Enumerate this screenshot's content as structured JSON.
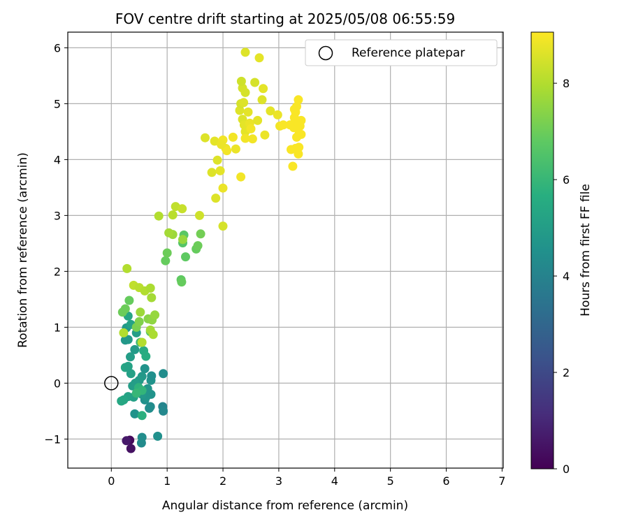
{
  "chart_data": {
    "type": "scatter",
    "title": "FOV centre drift starting at 2025/05/08 06:55:59",
    "xlabel": "Angular distance from reference (arcmin)",
    "ylabel": "Rotation from reference (arcmin)",
    "xlim": [
      -0.78,
      7.02
    ],
    "ylim": [
      -1.52,
      6.28
    ],
    "xticks": [
      "0",
      "1",
      "2",
      "3",
      "4",
      "5",
      "6",
      "7"
    ],
    "yticks": [
      "−1",
      "0",
      "1",
      "2",
      "3",
      "4",
      "5",
      "6"
    ],
    "grid": true,
    "legend": {
      "location": "top-right",
      "entries": [
        "Reference platepar"
      ]
    },
    "colorbar": {
      "label": "Hours from first FF file",
      "range": [
        0,
        9.06
      ],
      "ticks": [
        "0",
        "2",
        "4",
        "6",
        "8"
      ],
      "colormap": "viridis"
    },
    "reference_point": {
      "name": "Reference platepar",
      "x": 0,
      "y": 0
    },
    "points": [
      [
        0.33,
        -1.02,
        0.2
      ],
      [
        0.35,
        -1.17,
        0.4
      ],
      [
        0.27,
        -1.03,
        0.6
      ],
      [
        0.54,
        -1.07,
        4.3
      ],
      [
        0.55,
        -0.97,
        4.4
      ],
      [
        0.83,
        -0.95,
        4.5
      ],
      [
        0.42,
        -0.55,
        4.6
      ],
      [
        0.92,
        -0.42,
        4.1
      ],
      [
        0.93,
        -0.5,
        4.2
      ],
      [
        0.7,
        -0.42,
        4.3
      ],
      [
        0.68,
        -0.45,
        4.4
      ],
      [
        0.6,
        -0.3,
        4.5
      ],
      [
        0.71,
        -0.2,
        4.6
      ],
      [
        0.62,
        -0.25,
        4.7
      ],
      [
        0.55,
        -0.2,
        4.8
      ],
      [
        0.65,
        -0.1,
        4.7
      ],
      [
        0.71,
        0.05,
        4.6
      ],
      [
        0.72,
        0.13,
        4.5
      ],
      [
        0.93,
        0.17,
        4.4
      ],
      [
        0.6,
        0.26,
        4.6
      ],
      [
        0.55,
        0.12,
        4.8
      ],
      [
        0.5,
        0.05,
        4.9
      ],
      [
        0.43,
        0.0,
        5.0
      ],
      [
        0.38,
        -0.05,
        5.0
      ],
      [
        0.4,
        -0.25,
        5.1
      ],
      [
        0.3,
        -0.24,
        5.2
      ],
      [
        0.22,
        -0.3,
        5.3
      ],
      [
        0.18,
        -0.32,
        5.4
      ],
      [
        0.25,
        0.28,
        5.3
      ],
      [
        0.3,
        0.3,
        5.2
      ],
      [
        0.35,
        0.17,
        5.1
      ],
      [
        0.34,
        0.47,
        5.0
      ],
      [
        0.42,
        0.6,
        4.9
      ],
      [
        0.45,
        0.9,
        5.0
      ],
      [
        0.3,
        0.78,
        4.9
      ],
      [
        0.25,
        0.77,
        4.8
      ],
      [
        0.27,
        0.99,
        4.9
      ],
      [
        0.35,
        1.05,
        5.2
      ],
      [
        0.3,
        1.2,
        5.3
      ],
      [
        0.58,
        0.58,
        5.5
      ],
      [
        0.62,
        0.48,
        5.6
      ],
      [
        0.55,
        -0.58,
        5.7
      ],
      [
        0.49,
        -0.08,
        5.8
      ],
      [
        0.55,
        -0.13,
        5.9
      ],
      [
        0.45,
        -0.18,
        6.0
      ],
      [
        0.52,
        0.73,
        6.1
      ],
      [
        0.7,
        0.92,
        6.5
      ],
      [
        0.32,
        1.48,
        6.9
      ],
      [
        0.25,
        1.33,
        7.0
      ],
      [
        0.2,
        1.27,
        7.0
      ],
      [
        0.45,
        1.0,
        7.2
      ],
      [
        0.5,
        1.1,
        7.3
      ],
      [
        0.66,
        1.15,
        7.4
      ],
      [
        0.73,
        1.13,
        7.5
      ],
      [
        0.78,
        1.22,
        7.6
      ],
      [
        0.52,
        1.27,
        7.7
      ],
      [
        0.7,
        0.95,
        7.8
      ],
      [
        0.75,
        0.87,
        7.9
      ],
      [
        0.55,
        0.73,
        8.0
      ],
      [
        0.22,
        0.9,
        8.0
      ],
      [
        0.4,
        1.75,
        8.2
      ],
      [
        0.5,
        1.71,
        8.1
      ],
      [
        0.6,
        1.65,
        8.0
      ],
      [
        0.7,
        1.7,
        7.9
      ],
      [
        0.72,
        1.53,
        7.8
      ],
      [
        0.28,
        2.05,
        8.0
      ],
      [
        1.25,
        1.85,
        6.8
      ],
      [
        1.26,
        1.81,
        6.9
      ],
      [
        0.97,
        2.19,
        6.9
      ],
      [
        1.0,
        2.33,
        7.0
      ],
      [
        1.33,
        2.26,
        6.8
      ],
      [
        1.28,
        2.51,
        6.6
      ],
      [
        1.3,
        2.65,
        6.7
      ],
      [
        1.52,
        2.4,
        6.9
      ],
      [
        1.55,
        2.46,
        7.0
      ],
      [
        1.6,
        2.67,
        7.1
      ],
      [
        1.28,
        2.57,
        7.6
      ],
      [
        1.1,
        2.66,
        7.7
      ],
      [
        1.03,
        2.69,
        7.8
      ],
      [
        0.85,
        2.99,
        8.0
      ],
      [
        1.1,
        3.01,
        8.1
      ],
      [
        1.15,
        3.16,
        8.2
      ],
      [
        1.27,
        3.12,
        8.3
      ],
      [
        1.58,
        3.0,
        8.4
      ],
      [
        2.0,
        2.81,
        8.5
      ],
      [
        1.68,
        4.39,
        8.6
      ],
      [
        1.8,
        3.77,
        8.6
      ],
      [
        1.85,
        4.33,
        8.7
      ],
      [
        1.9,
        3.99,
        8.6
      ],
      [
        1.87,
        3.31,
        8.6
      ],
      [
        1.95,
        3.8,
        8.7
      ],
      [
        2.0,
        3.49,
        8.8
      ],
      [
        2.05,
        4.2,
        8.8
      ],
      [
        2.0,
        4.35,
        8.9
      ],
      [
        2.07,
        4.16,
        8.9
      ],
      [
        1.97,
        4.27,
        8.8
      ],
      [
        2.18,
        4.4,
        8.9
      ],
      [
        2.23,
        4.19,
        8.8
      ],
      [
        2.32,
        3.69,
        8.9
      ],
      [
        2.3,
        4.88,
        8.6
      ],
      [
        2.32,
        5.0,
        8.5
      ],
      [
        2.35,
        4.72,
        8.6
      ],
      [
        2.4,
        4.5,
        8.7
      ],
      [
        2.4,
        4.38,
        8.9
      ],
      [
        2.38,
        4.62,
        8.7
      ],
      [
        2.48,
        4.65,
        8.8
      ],
      [
        2.5,
        4.55,
        8.9
      ],
      [
        2.53,
        4.37,
        8.9
      ],
      [
        2.45,
        4.85,
        8.7
      ],
      [
        2.37,
        5.02,
        8.6
      ],
      [
        2.35,
        5.28,
        8.5
      ],
      [
        2.33,
        5.4,
        8.4
      ],
      [
        2.4,
        5.2,
        8.5
      ],
      [
        2.57,
        5.38,
        8.5
      ],
      [
        2.62,
        4.7,
        8.7
      ],
      [
        2.7,
        5.07,
        8.6
      ],
      [
        2.72,
        5.27,
        8.7
      ],
      [
        2.75,
        4.44,
        8.8
      ],
      [
        2.85,
        4.87,
        8.7
      ],
      [
        2.98,
        4.8,
        8.8
      ],
      [
        3.02,
        4.6,
        8.9
      ],
      [
        3.08,
        4.62,
        9.0
      ],
      [
        3.2,
        4.62,
        9.0
      ],
      [
        3.27,
        4.57,
        9.0
      ],
      [
        2.65,
        5.82,
        8.7
      ],
      [
        2.4,
        5.92,
        8.6
      ],
      [
        3.22,
        4.18,
        9.0
      ],
      [
        3.25,
        3.88,
        9.0
      ],
      [
        3.3,
        4.2,
        9.0
      ],
      [
        3.35,
        4.1,
        9.0
      ],
      [
        3.36,
        4.22,
        9.0
      ],
      [
        3.32,
        4.4,
        9.0
      ],
      [
        3.36,
        4.45,
        9.0
      ],
      [
        3.4,
        4.45,
        9.0
      ],
      [
        3.38,
        4.6,
        9.0
      ],
      [
        3.4,
        4.7,
        9.0
      ],
      [
        3.33,
        4.68,
        9.0
      ],
      [
        3.28,
        4.75,
        9.0
      ],
      [
        3.3,
        4.85,
        9.0
      ],
      [
        3.32,
        4.95,
        9.0
      ],
      [
        3.35,
        5.07,
        9.0
      ],
      [
        3.28,
        4.9,
        9.0
      ]
    ]
  }
}
